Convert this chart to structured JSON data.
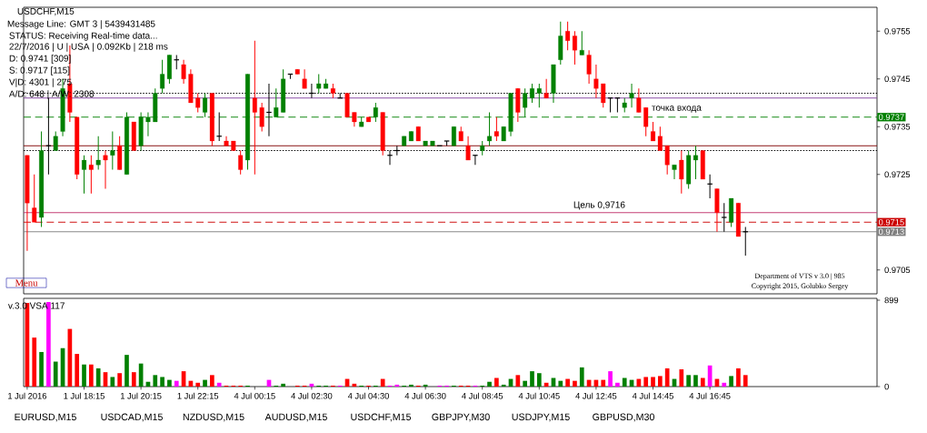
{
  "chart_data": [
    {
      "type": "candlestick",
      "title": "USDCHF,M15",
      "categories": [
        null,
        null,
        null,
        null,
        null,
        null,
        null,
        null,
        null,
        null,
        null,
        null,
        null,
        null,
        null,
        null,
        null,
        null,
        null,
        null,
        null,
        null,
        null,
        null,
        null,
        null,
        null,
        null,
        null,
        null,
        null,
        null,
        null,
        null,
        null,
        null,
        null,
        null,
        null,
        null,
        null,
        null,
        null,
        null,
        null,
        null,
        null,
        null,
        null,
        null,
        null,
        null,
        null,
        null,
        null,
        null,
        null,
        null,
        null,
        null,
        null,
        null,
        null,
        null,
        null,
        null,
        null,
        null,
        null,
        null,
        null,
        null,
        null,
        null,
        null,
        null,
        null,
        null,
        null,
        null,
        null,
        null,
        null,
        null,
        null,
        null,
        null,
        null,
        null,
        null,
        null,
        null,
        null,
        null,
        null,
        null,
        null,
        null,
        null,
        null,
        null,
        null,
        null,
        null,
        null,
        null,
        null,
        null,
        null,
        null,
        null,
        null,
        null,
        null,
        null,
        null,
        null,
        null,
        null,
        null
      ],
      "ohlc": [
        [
          0.9729,
          0.9729,
          0.9709,
          0.9719
        ],
        [
          0.9718,
          0.9725,
          0.9715,
          0.9715
        ],
        [
          0.9716,
          0.9734,
          0.9714,
          0.973
        ],
        [
          0.9731,
          0.9741,
          0.9725,
          0.9731
        ],
        [
          0.973,
          0.9734,
          0.973,
          0.9733
        ],
        [
          0.9734,
          0.9745,
          0.9733,
          0.9743
        ],
        [
          0.9744,
          0.9752,
          0.9736,
          0.9738
        ],
        [
          0.9737,
          0.9737,
          0.9724,
          0.9725
        ],
        [
          0.9726,
          0.9729,
          0.9721,
          0.9728
        ],
        [
          0.9727,
          0.9729,
          0.9721,
          0.9726
        ],
        [
          0.9727,
          0.9733,
          0.9726,
          0.9728
        ],
        [
          0.9729,
          0.973,
          0.9722,
          0.9728
        ],
        [
          0.9729,
          0.9734,
          0.9726,
          0.973
        ],
        [
          0.9731,
          0.9733,
          0.9726,
          0.9726
        ],
        [
          0.9725,
          0.9738,
          0.9725,
          0.9737
        ],
        [
          0.9736,
          0.9736,
          0.973,
          0.973
        ],
        [
          0.9731,
          0.9738,
          0.973,
          0.9737
        ],
        [
          0.9736,
          0.9738,
          0.9733,
          0.9737
        ],
        [
          0.9736,
          0.9743,
          0.9736,
          0.9742
        ],
        [
          0.9743,
          0.9749,
          0.9742,
          0.9746
        ],
        [
          0.9745,
          0.975,
          0.9744,
          0.975
        ],
        [
          0.9749,
          0.975,
          0.9747,
          0.9749
        ],
        [
          0.9748,
          0.9749,
          0.9744,
          0.9745
        ],
        [
          0.9746,
          0.9747,
          0.974,
          0.974
        ],
        [
          0.9741,
          0.9742,
          0.9738,
          0.9739
        ],
        [
          0.9738,
          0.9742,
          0.9737,
          0.9741
        ],
        [
          0.9742,
          0.9742,
          0.9731,
          0.9732
        ],
        [
          0.9733,
          0.9738,
          0.9732,
          0.9733
        ],
        [
          0.9732,
          0.9733,
          0.9731,
          0.9731
        ],
        [
          0.9732,
          0.9732,
          0.973,
          0.973
        ],
        [
          0.9729,
          0.973,
          0.9725,
          0.9726
        ],
        [
          0.9728,
          0.9746,
          0.9726,
          0.9746
        ],
        [
          0.9741,
          0.9753,
          0.9725,
          0.9738
        ],
        [
          0.9739,
          0.974,
          0.9734,
          0.9735
        ],
        [
          0.9738,
          0.9744,
          0.9733,
          0.9738
        ],
        [
          0.9737,
          0.9743,
          0.9737,
          0.9739
        ],
        [
          0.9738,
          0.9747,
          0.9738,
          0.9745
        ],
        [
          0.9746,
          0.9746,
          0.9745,
          0.9746
        ],
        [
          0.9747,
          0.9747,
          0.9746,
          0.9746
        ],
        [
          0.9745,
          0.9747,
          0.9743,
          0.9743
        ],
        [
          0.9742,
          0.9744,
          0.9741,
          0.9742
        ],
        [
          0.9743,
          0.9746,
          0.9742,
          0.9744
        ],
        [
          0.9743,
          0.9745,
          0.9743,
          0.9744
        ],
        [
          0.9743,
          0.9744,
          0.9741,
          0.9742
        ],
        [
          0.9741,
          0.9742,
          0.9741,
          0.9741
        ],
        [
          0.9742,
          0.9742,
          0.9737,
          0.9737
        ],
        [
          0.9738,
          0.9738,
          0.9735,
          0.9736
        ],
        [
          0.9735,
          0.9737,
          0.9735,
          0.9736
        ],
        [
          0.9737,
          0.9737,
          0.9736,
          0.9736
        ],
        [
          0.9737,
          0.974,
          0.9736,
          0.9739
        ],
        [
          0.9738,
          0.9738,
          0.9729,
          0.973
        ],
        [
          0.9729,
          0.973,
          0.9727,
          0.9729
        ],
        [
          0.973,
          0.9731,
          0.9729,
          0.973
        ],
        [
          0.9731,
          0.9733,
          0.9731,
          0.9733
        ],
        [
          0.9732,
          0.9734,
          0.9732,
          0.9734
        ],
        [
          0.9735,
          0.9735,
          0.9732,
          0.9732
        ],
        [
          0.9731,
          0.9732,
          0.9731,
          0.9732
        ],
        [
          0.9731,
          0.9732,
          0.9731,
          0.9732
        ],
        [
          0.9731,
          0.9731,
          0.9731,
          0.9731
        ],
        [
          0.9732,
          0.9732,
          0.9731,
          0.9732
        ],
        [
          0.9731,
          0.9735,
          0.9731,
          0.9735
        ],
        [
          0.9734,
          0.9735,
          0.9732,
          0.9732
        ],
        [
          0.9731,
          0.9733,
          0.9728,
          0.9728
        ],
        [
          0.9729,
          0.9729,
          0.9727,
          0.9729
        ],
        [
          0.973,
          0.9732,
          0.9729,
          0.9731
        ],
        [
          0.9732,
          0.9738,
          0.9731,
          0.9733
        ],
        [
          0.9734,
          0.9737,
          0.9732,
          0.9733
        ],
        [
          0.9732,
          0.9735,
          0.9732,
          0.9735
        ],
        [
          0.9734,
          0.9742,
          0.9733,
          0.9742
        ],
        [
          0.9743,
          0.9743,
          0.9736,
          0.9738
        ],
        [
          0.9739,
          0.9743,
          0.9737,
          0.9742
        ],
        [
          0.9741,
          0.9744,
          0.974,
          0.9743
        ],
        [
          0.9742,
          0.9744,
          0.9739,
          0.9743
        ],
        [
          0.9742,
          0.9745,
          0.9741,
          0.9741
        ],
        [
          0.9742,
          0.9748,
          0.974,
          0.9748
        ],
        [
          0.9749,
          0.9757,
          0.9748,
          0.9754
        ],
        [
          0.9755,
          0.9757,
          0.9751,
          0.9753
        ],
        [
          0.9754,
          0.9755,
          0.9748,
          0.9751
        ],
        [
          0.975,
          0.9755,
          0.975,
          0.9751
        ],
        [
          0.975,
          0.9751,
          0.9744,
          0.9746
        ],
        [
          0.9745,
          0.9748,
          0.9741,
          0.9743
        ],
        [
          0.9744,
          0.9744,
          0.9739,
          0.974
        ],
        [
          0.9741,
          0.9741,
          0.9738,
          0.9741
        ],
        [
          0.9741,
          0.9741,
          0.9738,
          0.9741
        ],
        [
          0.9739,
          0.9741,
          0.9738,
          0.974
        ],
        [
          0.9741,
          0.9744,
          0.9739,
          0.9742
        ],
        [
          0.9741,
          0.9743,
          0.9738,
          0.9738
        ],
        [
          0.9739,
          0.9739,
          0.9733,
          0.9735
        ],
        [
          0.9734,
          0.9736,
          0.9732,
          0.9732
        ],
        [
          0.9733,
          0.9735,
          0.973,
          0.973
        ],
        [
          0.9731,
          0.9731,
          0.9725,
          0.9727
        ],
        [
          0.9726,
          0.9727,
          0.9724,
          0.9727
        ],
        [
          0.9728,
          0.973,
          0.9721,
          0.9724
        ],
        [
          0.9723,
          0.973,
          0.9722,
          0.9729
        ],
        [
          0.9728,
          0.9731,
          0.9724,
          0.9729
        ],
        [
          0.973,
          0.973,
          0.9724,
          0.9724
        ],
        [
          0.9723,
          0.9725,
          0.972,
          0.9723
        ],
        [
          0.9722,
          0.9722,
          0.9713,
          0.9717
        ],
        [
          0.9716,
          0.9719,
          0.9713,
          0.9716
        ],
        [
          0.9715,
          0.972,
          0.9714,
          0.972
        ],
        [
          0.9719,
          0.9719,
          0.9712,
          0.9712
        ],
        [
          0.9713,
          0.9714,
          0.9708,
          0.9713
        ],
        null,
        null,
        null,
        null,
        null,
        null,
        null,
        null,
        null,
        null,
        null,
        null,
        null,
        null,
        null,
        null,
        null,
        null
      ],
      "colors": [
        "#ff0000",
        "#ff0000",
        "#008000",
        "#000000",
        "#008000",
        "#008000",
        "#ff0000",
        "#ff0000",
        "#008000",
        "#ff0000",
        "#008000",
        "#ff0000",
        "#008000",
        "#ff0000",
        "#008000",
        "#ff0000",
        "#008000",
        "#008000",
        "#008000",
        "#008000",
        "#008000",
        "#000000",
        "#ff0000",
        "#ff0000",
        "#ff0000",
        "#008000",
        "#ff0000",
        "#000000",
        "#ff0000",
        "#ff0000",
        "#ff0000",
        "#008000",
        "#ff0000",
        "#ff0000",
        "#000000",
        "#008000",
        "#008000",
        "#000000",
        "#ff0000",
        "#ff0000",
        "#000000",
        "#008000",
        "#008000",
        "#ff0000",
        "#000000",
        "#ff0000",
        "#ff0000",
        "#008000",
        "#ff0000",
        "#008000",
        "#ff0000",
        "#000000",
        "#000000",
        "#008000",
        "#008000",
        "#ff0000",
        "#008000",
        "#008000",
        "#000000",
        "#000000",
        "#008000",
        "#ff0000",
        "#ff0000",
        "#000000",
        "#008000",
        "#008000",
        "#ff0000",
        "#008000",
        "#008000",
        "#ff0000",
        "#008000",
        "#008000",
        "#008000",
        "#ff0000",
        "#008000",
        "#008000",
        "#ff0000",
        "#ff0000",
        "#008000",
        "#ff0000",
        "#ff0000",
        "#ff0000",
        "#000000",
        "#000000",
        "#008000",
        "#008000",
        "#ff0000",
        "#ff0000",
        "#ff0000",
        "#ff0000",
        "#ff0000",
        "#008000",
        "#ff0000",
        "#008000",
        "#008000",
        "#ff0000",
        "#000000",
        "#ff0000",
        "#000000",
        "#008000",
        "#ff0000",
        "#000000",
        null,
        null,
        null,
        null,
        null,
        null,
        null,
        null,
        null,
        null,
        null,
        null,
        null,
        null,
        null,
        null,
        null,
        null
      ],
      "ylim": [
        0.97,
        0.976
      ],
      "yticks": [
        0.9705,
        0.9725,
        0.9735,
        0.9745,
        0.9755
      ],
      "ref_lines": [
        {
          "axis": "y",
          "value": 0.9731,
          "color": "#800000",
          "line_style": "solid"
        },
        {
          "axis": "y",
          "value": 0.9741,
          "color": "#8040a0",
          "line_style": "solid"
        },
        {
          "axis": "y",
          "value": 0.9742,
          "color": "#000000",
          "line_style": "dotted"
        },
        {
          "axis": "y",
          "value": 0.973,
          "color": "#000000",
          "line_style": "dotted"
        },
        {
          "axis": "y",
          "value": 0.9717,
          "color": "#c0306a",
          "line_style": "solid"
        },
        {
          "axis": "y",
          "value": 0.9737,
          "label": "0.9737",
          "color": "#008000",
          "line_style": "dashed"
        },
        {
          "axis": "y",
          "value": 0.9715,
          "label": "0.9715",
          "color": "#cc0000",
          "line_style": "dashed"
        },
        {
          "axis": "y",
          "value": 0.9713,
          "label": "0.9713",
          "color": "#808080",
          "line_style": "solid"
        }
      ],
      "annotations": [
        "Message Line: GMT 3 | 5439431485",
        "STATUS:  Receiving Real-time data...",
        "22/7/2016 | U | USA | 0.092Kb | 218 ms",
        "D: 0.9741  [309]",
        "S: 0.9717  [115]",
        "V|D: 4301 | 275",
        "A/D: 648 | A/W: 2308",
        "Menu",
        "точка входа",
        "Цель 0,9716",
        "Department of VTS v 3.0 | 985",
        "Copyright 2015, Golubko Sergey"
      ]
    },
    {
      "type": "bar",
      "title": "v.3.0 VSA 117",
      "categories": [
        "1 Jul 2016",
        null,
        null,
        null,
        null,
        null,
        null,
        null,
        "1 Jul 18:15",
        null,
        null,
        null,
        null,
        null,
        null,
        null,
        "1 Jul 20:15",
        null,
        null,
        null,
        null,
        null,
        null,
        null,
        "1 Jul 22:15",
        null,
        null,
        null,
        null,
        null,
        null,
        null,
        "4 Jul 00:15",
        null,
        null,
        null,
        null,
        null,
        null,
        null,
        "4 Jul 02:30",
        null,
        null,
        null,
        null,
        null,
        null,
        null,
        "4 Jul 04:30",
        null,
        null,
        null,
        null,
        null,
        null,
        null,
        "4 Jul 06:30",
        null,
        null,
        null,
        null,
        null,
        null,
        null,
        "4 Jul 08:45",
        null,
        null,
        null,
        null,
        null,
        null,
        null,
        "4 Jul 10:45",
        null,
        null,
        null,
        null,
        null,
        null,
        null,
        "4 Jul 12:45",
        null,
        null,
        null,
        null,
        null,
        null,
        null,
        "4 Jul 14:45",
        null,
        null,
        null,
        null,
        null,
        null,
        null,
        "4 Jul 16:45",
        null,
        null,
        null,
        null,
        null,
        null,
        null,
        null,
        null,
        null,
        null,
        null,
        null,
        null,
        null,
        null,
        null,
        null,
        null,
        null,
        null,
        null,
        null
      ],
      "values": [
        870,
        510,
        360,
        880,
        260,
        400,
        600,
        340,
        230,
        230,
        190,
        150,
        100,
        140,
        330,
        150,
        240,
        50,
        120,
        100,
        70,
        60,
        160,
        60,
        40,
        70,
        120,
        40,
        10,
        10,
        10,
        10,
        0,
        0,
        70,
        10,
        30,
        0,
        10,
        10,
        30,
        10,
        10,
        10,
        10,
        80,
        30,
        10,
        10,
        10,
        80,
        10,
        20,
        10,
        20,
        10,
        20,
        0,
        10,
        10,
        10,
        10,
        10,
        10,
        10,
        50,
        90,
        20,
        80,
        120,
        60,
        160,
        140,
        40,
        90,
        60,
        80,
        60,
        200,
        70,
        70,
        70,
        160,
        40,
        90,
        70,
        80,
        100,
        100,
        110,
        190,
        80,
        180,
        120,
        120,
        90,
        220,
        80,
        40,
        110,
        190,
        120,
        null,
        null,
        null,
        null,
        null,
        null,
        null,
        null,
        null,
        null,
        null,
        null,
        null,
        null,
        null,
        null,
        null,
        null
      ],
      "colors": [
        "#ff0000",
        "#ff0000",
        "#008000",
        "#ff00ff",
        "#008000",
        "#008000",
        "#ff0000",
        "#ff0000",
        "#008000",
        "#ff0000",
        "#008000",
        "#ff0000",
        "#008000",
        "#ff0000",
        "#008000",
        "#ff0000",
        "#008000",
        "#008000",
        "#008000",
        "#008000",
        "#008000",
        "#ff00ff",
        "#ff0000",
        "#ff0000",
        "#ff0000",
        "#008000",
        "#ff0000",
        "#ff00ff",
        "#ff0000",
        "#ff0000",
        "#ff0000",
        "#008000",
        "#ff0000",
        "#ff0000",
        "#ff00ff",
        "#008000",
        "#008000",
        "#ff00ff",
        "#ff0000",
        "#ff0000",
        "#ff00ff",
        "#008000",
        "#008000",
        "#ff0000",
        "#ff00ff",
        "#ff0000",
        "#ff0000",
        "#008000",
        "#ff0000",
        "#008000",
        "#ff0000",
        "#ff00ff",
        "#ff00ff",
        "#008000",
        "#008000",
        "#ff0000",
        "#008000",
        "#008000",
        "#ff00ff",
        "#ff00ff",
        "#008000",
        "#ff0000",
        "#ff0000",
        "#ff00ff",
        "#008000",
        "#008000",
        "#ff0000",
        "#008000",
        "#008000",
        "#ff0000",
        "#008000",
        "#008000",
        "#008000",
        "#ff0000",
        "#008000",
        "#008000",
        "#ff0000",
        "#ff0000",
        "#008000",
        "#ff0000",
        "#ff0000",
        "#ff0000",
        "#ff00ff",
        "#ff00ff",
        "#008000",
        "#008000",
        "#ff0000",
        "#ff0000",
        "#ff0000",
        "#ff0000",
        "#ff0000",
        "#008000",
        "#ff0000",
        "#008000",
        "#008000",
        "#ff0000",
        "#ff00ff",
        "#ff0000",
        "#ff00ff",
        "#008000",
        "#ff0000",
        "#ff0000",
        null,
        null,
        null,
        null,
        null,
        null,
        null,
        null,
        null,
        null,
        null,
        null,
        null,
        null,
        null,
        null,
        null,
        null
      ],
      "ylim": [
        0,
        918
      ],
      "yticks": [
        0,
        899
      ],
      "annotations": [
        "EURUSD,M15",
        "USDCAD,M15",
        "NZDUSD,M15",
        "AUDUSD,M15",
        "USDCHF,M15",
        "GBPJPY,M30",
        "USDJPY,M15",
        "GBPUSD,M30"
      ]
    }
  ]
}
